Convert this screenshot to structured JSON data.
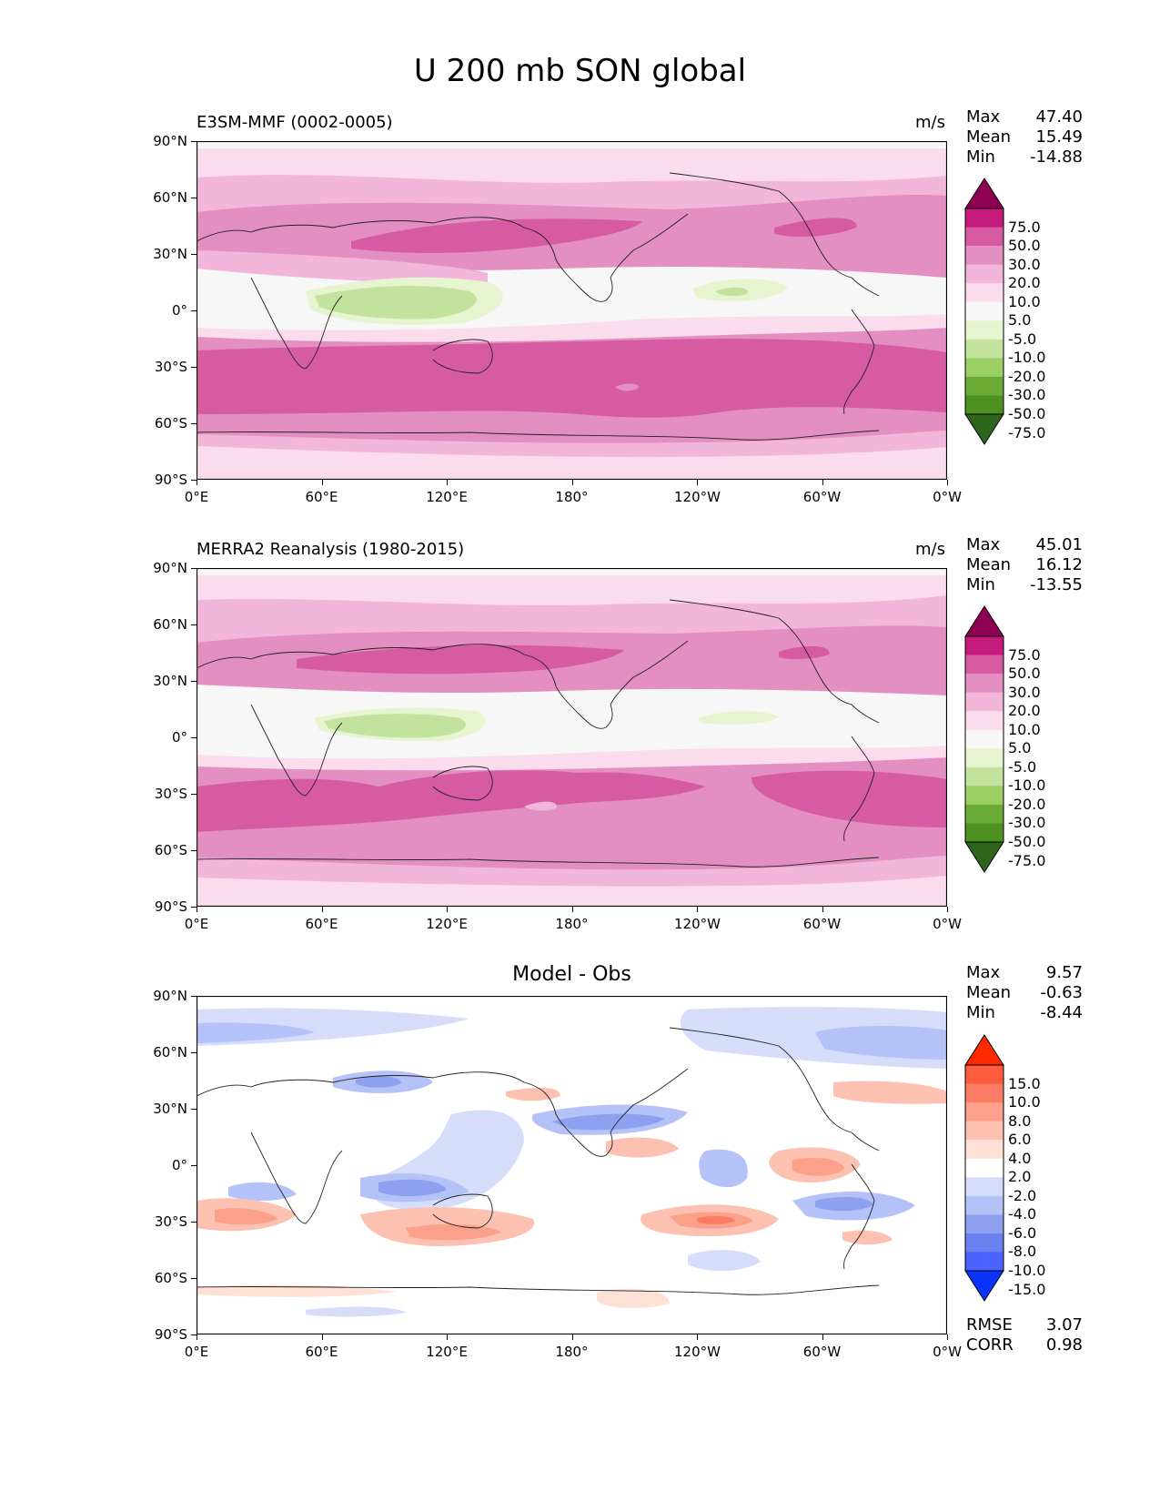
{
  "figure_title": "U 200 mb SON global",
  "lat_ticks": [
    "90°N",
    "60°N",
    "30°N",
    "0°",
    "30°S",
    "60°S",
    "90°S"
  ],
  "lon_ticks": [
    "0°E",
    "60°E",
    "120°E",
    "180°",
    "120°W",
    "60°W",
    "0°W"
  ],
  "panels": [
    {
      "title": "E3SM-MMF (0002-0005)",
      "units": "m/s",
      "stats": {
        "max_label": "Max",
        "max": "47.40",
        "mean_label": "Mean",
        "mean": "15.49",
        "min_label": "Min",
        "min": "-14.88"
      }
    },
    {
      "title": "MERRA2 Reanalysis (1980-2015)",
      "units": "m/s",
      "stats": {
        "max_label": "Max",
        "max": "45.01",
        "mean_label": "Mean",
        "mean": "16.12",
        "min_label": "Min",
        "min": "-13.55"
      }
    },
    {
      "title": "Model - Obs",
      "units": "",
      "stats": {
        "max_label": "Max",
        "max": "9.57",
        "mean_label": "Mean",
        "mean": "-0.63",
        "min_label": "Min",
        "min": "-8.44"
      },
      "metrics": {
        "rmse_label": "RMSE",
        "rmse": "3.07",
        "corr_label": "CORR",
        "corr": "0.98"
      }
    }
  ],
  "colorbars": {
    "field": {
      "levels": [
        "75.0",
        "50.0",
        "30.0",
        "20.0",
        "10.0",
        "5.0",
        "-5.0",
        "-10.0",
        "-20.0",
        "-30.0",
        "-50.0",
        "-75.0"
      ],
      "colors": [
        "#8e0152",
        "#c51b7d",
        "#d65ba3",
        "#e48fc1",
        "#f1b6da",
        "#fbdcec",
        "#f7f7f7",
        "#e6f5d0",
        "#c2e29d",
        "#9ccf63",
        "#6aab36",
        "#4d9221",
        "#2d661b"
      ]
    },
    "diff": {
      "levels": [
        "15.0",
        "10.0",
        "8.0",
        "6.0",
        "4.0",
        "2.0",
        "-2.0",
        "-4.0",
        "-6.0",
        "-8.0",
        "-10.0",
        "-15.0"
      ],
      "colors": [
        "#ff2a00",
        "#ff5c3e",
        "#fb7c63",
        "#fba08a",
        "#fcc1b1",
        "#fee0d7",
        "#ffffff",
        "#d6ddfb",
        "#b5c2f8",
        "#8ea0f0",
        "#6a81f0",
        "#4a63ff",
        "#0a33ff"
      ]
    }
  },
  "chart_data": [
    {
      "type": "heatmap",
      "title": "E3SM-MMF (0002-0005)",
      "variable": "U 200 mb SON global",
      "units": "m/s",
      "x_range": [
        0,
        360
      ],
      "y_range": [
        -90,
        90
      ],
      "bands": [
        {
          "lat": 60,
          "value": 10
        },
        {
          "lat": 40,
          "value": 35
        },
        {
          "lat": 35,
          "value": 40
        },
        {
          "lat": 0,
          "value": -10
        },
        {
          "lat": -35,
          "value": 35
        },
        {
          "lat": -50,
          "value": 30
        },
        {
          "lat": -75,
          "value": 8
        }
      ],
      "stats": {
        "max": 47.4,
        "mean": 15.49,
        "min": -14.88
      }
    },
    {
      "type": "heatmap",
      "title": "MERRA2 Reanalysis (1980-2015)",
      "units": "m/s",
      "x_range": [
        0,
        360
      ],
      "y_range": [
        -90,
        90
      ],
      "bands": [
        {
          "lat": 60,
          "value": 12
        },
        {
          "lat": 38,
          "value": 35
        },
        {
          "lat": 0,
          "value": -8
        },
        {
          "lat": -40,
          "value": 38
        },
        {
          "lat": -75,
          "value": 8
        }
      ],
      "stats": {
        "max": 45.01,
        "mean": 16.12,
        "min": -13.55
      }
    },
    {
      "type": "heatmap",
      "title": "Model - Obs",
      "x_range": [
        0,
        360
      ],
      "y_range": [
        -90,
        90
      ],
      "anomalies": [
        {
          "lon": 240,
          "lat": -35,
          "value": 9
        },
        {
          "lon": 125,
          "lat": -45,
          "value": 7
        },
        {
          "lon": 45,
          "lat": -35,
          "value": 5
        },
        {
          "lon": 300,
          "lat": -5,
          "value": 6
        },
        {
          "lon": 80,
          "lat": -10,
          "value": -7
        },
        {
          "lon": 130,
          "lat": 0,
          "value": -6
        },
        {
          "lon": 300,
          "lat": -30,
          "value": -6
        },
        {
          "lon": 90,
          "lat": 40,
          "value": -6
        },
        {
          "lon": 220,
          "lat": 20,
          "value": -7
        },
        {
          "lon": 330,
          "lat": 60,
          "value": -6
        }
      ],
      "stats": {
        "max": 9.57,
        "mean": -0.63,
        "min": -8.44,
        "rmse": 3.07,
        "corr": 0.98
      }
    }
  ]
}
